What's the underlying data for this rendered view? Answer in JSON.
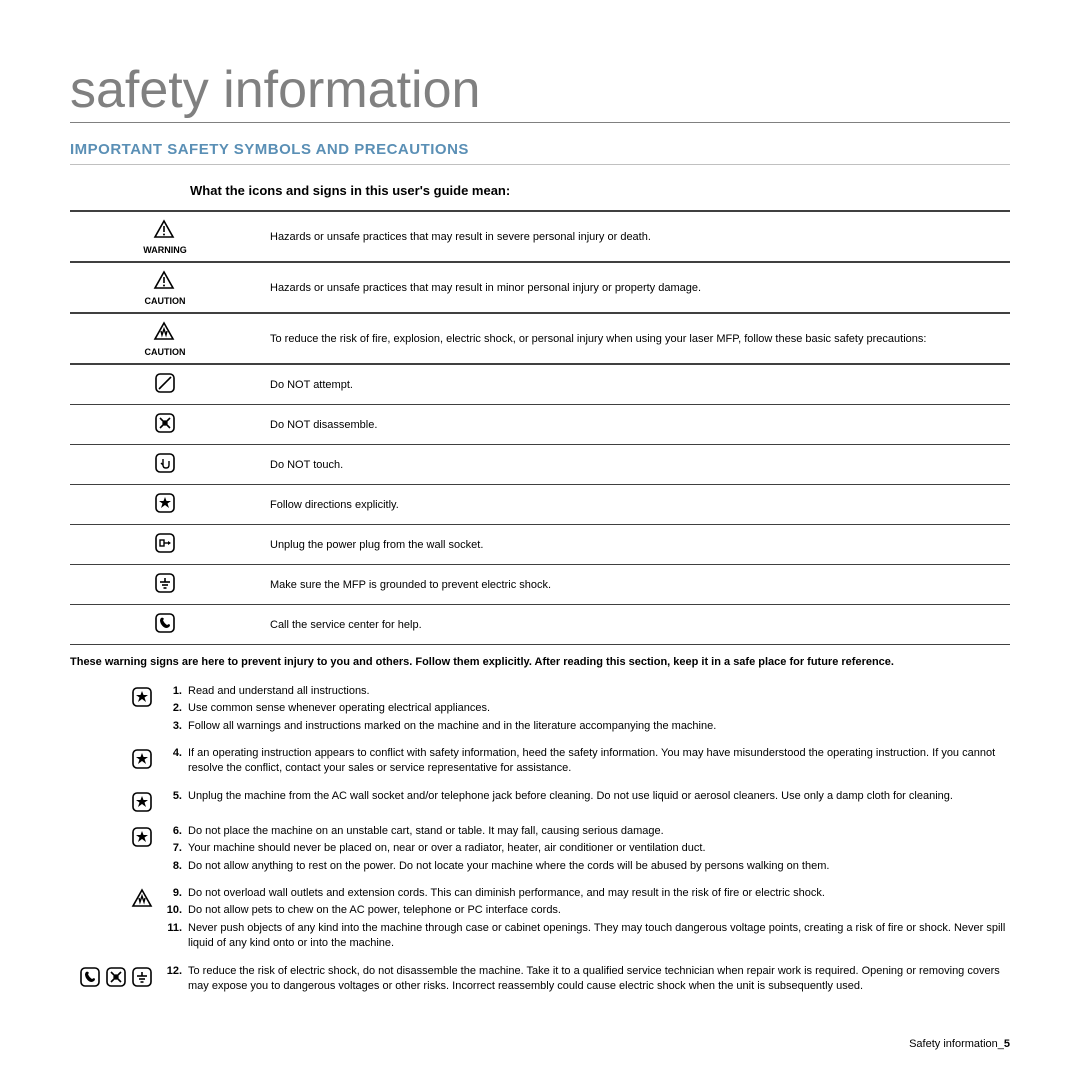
{
  "title": "safety information",
  "section_heading": "IMPORTANT SAFETY SYMBOLS AND PRECAUTIONS",
  "sub_heading": "What the icons and signs in this user's guide mean:",
  "symbols": [
    {
      "label": "WARNING",
      "desc": "Hazards or unsafe practices that may result in severe personal injury or death."
    },
    {
      "label": "CAUTION",
      "desc": "Hazards or unsafe practices that may result in minor personal injury or property damage."
    },
    {
      "label": "CAUTION",
      "desc": "To reduce the risk of fire, explosion, electric shock, or personal injury when using your laser MFP, follow these basic safety precautions:"
    },
    {
      "label": "",
      "desc": "Do NOT attempt."
    },
    {
      "label": "",
      "desc": "Do NOT disassemble."
    },
    {
      "label": "",
      "desc": "Do NOT touch."
    },
    {
      "label": "",
      "desc": "Follow directions explicitly."
    },
    {
      "label": "",
      "desc": "Unplug the power plug from the wall socket."
    },
    {
      "label": "",
      "desc": "Make sure the MFP is grounded to prevent electric shock."
    },
    {
      "label": "",
      "desc": "Call the service center for help."
    }
  ],
  "warning_note": "These warning signs are here to prevent injury to you and others. Follow them explicitly. After reading this section, keep it in a safe place for future reference.",
  "instructions": [
    {
      "icons": [
        "star"
      ],
      "items": [
        {
          "n": "1.",
          "t": "Read and understand all instructions."
        },
        {
          "n": "2.",
          "t": "Use common sense whenever operating electrical appliances."
        },
        {
          "n": "3.",
          "t": "Follow all warnings and instructions marked on the machine and in the literature accompanying the machine."
        }
      ]
    },
    {
      "icons": [
        "star"
      ],
      "items": [
        {
          "n": "4.",
          "t": "If an operating instruction appears to conflict with safety information, heed the safety information. You may have misunderstood the operating instruction. If you cannot resolve the conflict, contact your sales or service representative for assistance."
        }
      ]
    },
    {
      "icons": [
        "star"
      ],
      "items": [
        {
          "n": "5.",
          "t": "Unplug the machine from the AC wall socket and/or telephone jack before cleaning. Do not use liquid or aerosol cleaners. Use only a damp cloth for cleaning."
        }
      ]
    },
    {
      "icons": [
        "star"
      ],
      "items": [
        {
          "n": "6.",
          "t": "Do not place the machine on an unstable cart, stand or table. It may fall, causing serious damage."
        },
        {
          "n": "7.",
          "t": "Your machine should never be placed on, near or over a radiator, heater, air conditioner or ventilation duct."
        },
        {
          "n": "8.",
          "t": "Do not allow anything to rest on the power. Do not locate your machine where the cords will be abused by persons walking on them."
        }
      ]
    },
    {
      "icons": [
        "caution-tri"
      ],
      "items": [
        {
          "n": "9.",
          "t": "Do not overload wall outlets and extension cords. This can diminish performance, and may result in the risk of fire or electric shock."
        },
        {
          "n": "10.",
          "t": "Do not allow pets to chew on the AC power, telephone or PC interface cords."
        },
        {
          "n": "11.",
          "t": "Never push objects of any kind into the machine through case or cabinet openings. They may touch dangerous voltage points, creating a risk of fire or shock. Never spill liquid of any kind onto or into the machine."
        }
      ]
    },
    {
      "icons": [
        "phone",
        "disassemble",
        "ground"
      ],
      "items": [
        {
          "n": "12.",
          "t": "To reduce the risk of electric shock, do not disassemble the machine. Take it to a qualified service technician when repair work is required. Opening or removing covers may expose you to dangerous voltages or other risks. Incorrect reassembly could cause electric shock when the unit is subsequently used."
        }
      ]
    }
  ],
  "footer_text": "Safety information_",
  "footer_num": "5",
  "colors": {
    "title": "#808080",
    "heading": "#5a8fb5",
    "border": "#404040",
    "text": "#000000"
  }
}
